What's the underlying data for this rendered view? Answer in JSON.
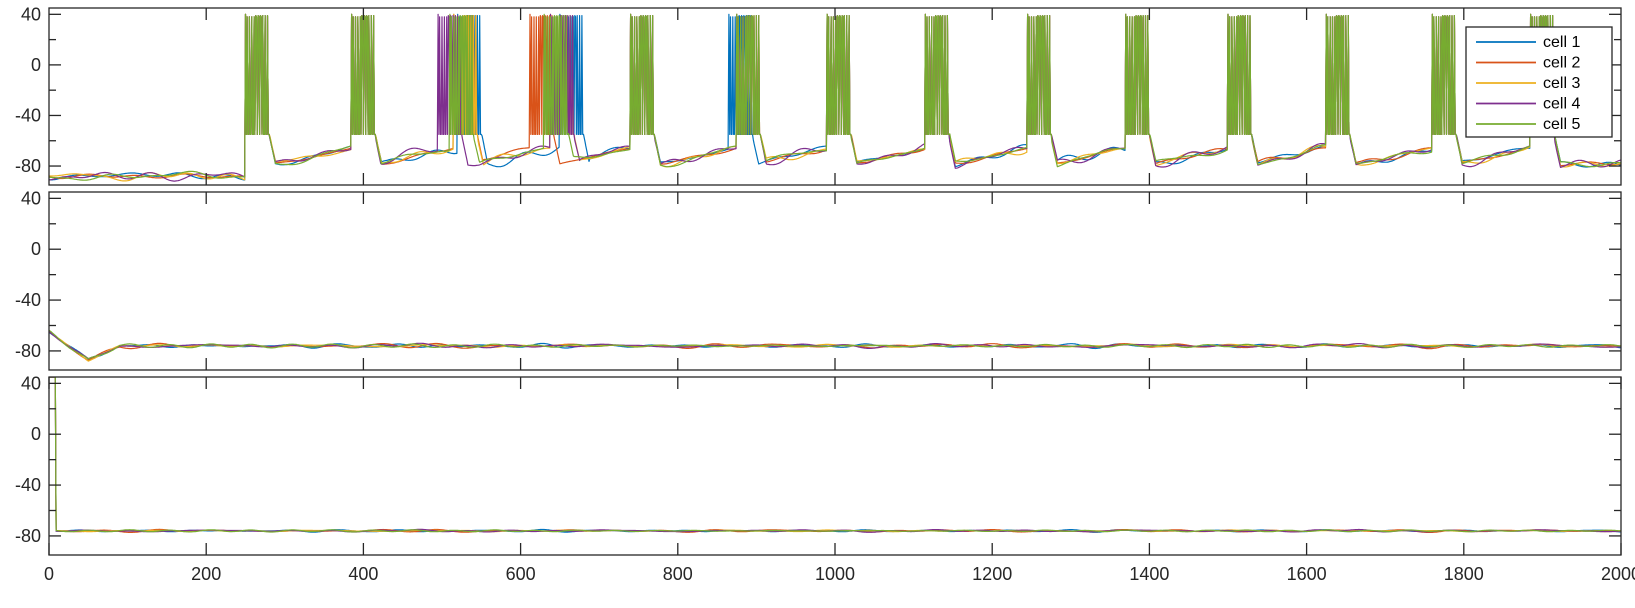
{
  "chart_data": [
    {
      "type": "line",
      "panel": "top",
      "title": "",
      "xlabel": "",
      "ylabel": "",
      "xlim": [
        0,
        2000
      ],
      "ylim": [
        -95,
        45
      ],
      "yticks": [
        40,
        0,
        -40,
        -80
      ],
      "ytick_labels": [
        "40",
        "0",
        "-40",
        "-80"
      ],
      "xticks": [
        200,
        400,
        600,
        800,
        1000,
        1200,
        1400,
        1600,
        1800
      ],
      "grid": false,
      "legend_position": "top-right",
      "baseline_mV": -76,
      "initial_rest_mV": -90,
      "initial_rest_until": 250,
      "burst_peak_mV": 40,
      "burst_trough_mV": -55,
      "burst_onsets": [
        250,
        385,
        500,
        620,
        740,
        870,
        990,
        1115,
        1245,
        1370,
        1500,
        1625,
        1760,
        1885
      ],
      "burst_duration": 30,
      "series": [
        {
          "name": "cell 1",
          "color": "#0072BD",
          "onset_offsets": [
            0,
            0,
            20,
            30,
            0,
            -5,
            0,
            0,
            0,
            0,
            0,
            0,
            0,
            0
          ]
        },
        {
          "name": "cell 2",
          "color": "#D95319",
          "onset_offsets": [
            0,
            0,
            15,
            -8,
            0,
            5,
            0,
            0,
            0,
            0,
            0,
            0,
            0,
            0
          ]
        },
        {
          "name": "cell 3",
          "color": "#EDB120",
          "onset_offsets": [
            0,
            0,
            15,
            18,
            0,
            5,
            0,
            0,
            0,
            0,
            0,
            0,
            0,
            0
          ]
        },
        {
          "name": "cell 4",
          "color": "#7E2F8E",
          "onset_offsets": [
            0,
            0,
            -5,
            18,
            0,
            5,
            0,
            0,
            0,
            0,
            0,
            0,
            0,
            0
          ]
        },
        {
          "name": "cell 5",
          "color": "#77AC30",
          "onset_offsets": [
            0,
            0,
            10,
            10,
            0,
            5,
            0,
            0,
            0,
            0,
            0,
            0,
            0,
            0
          ]
        }
      ]
    },
    {
      "type": "line",
      "panel": "middle",
      "title": "",
      "xlabel": "",
      "ylabel": "",
      "xlim": [
        0,
        2000
      ],
      "ylim": [
        -95,
        45
      ],
      "yticks": [
        40,
        0,
        -40,
        -80
      ],
      "ytick_labels": [
        "40",
        "0",
        "-40",
        "-80"
      ],
      "xticks": [
        200,
        400,
        600,
        800,
        1000,
        1200,
        1400,
        1600,
        1800
      ],
      "grid": false,
      "start_mV": -65,
      "dip_mV": -87,
      "dip_time": 50,
      "steady_mV": -76,
      "series": [
        {
          "name": "cell 1",
          "color": "#0072BD"
        },
        {
          "name": "cell 2",
          "color": "#D95319"
        },
        {
          "name": "cell 3",
          "color": "#EDB120"
        },
        {
          "name": "cell 4",
          "color": "#7E2F8E"
        },
        {
          "name": "cell 5",
          "color": "#77AC30"
        }
      ]
    },
    {
      "type": "line",
      "panel": "bottom",
      "title": "",
      "xlabel": "",
      "ylabel": "",
      "xlim": [
        0,
        2000
      ],
      "ylim": [
        -95,
        45
      ],
      "yticks": [
        40,
        0,
        -40,
        -80
      ],
      "ytick_labels": [
        "40",
        "0",
        "-40",
        "-80"
      ],
      "xticks": [
        0,
        200,
        400,
        600,
        800,
        1000,
        1200,
        1400,
        1600,
        1800,
        2000
      ],
      "xtick_labels": [
        "0",
        "200",
        "400",
        "600",
        "800",
        "1000",
        "1200",
        "1400",
        "1600",
        "1800",
        "2000"
      ],
      "grid": false,
      "initial_spike_mV": 45,
      "initial_spike_until": 8,
      "steady_mV": -76,
      "series": [
        {
          "name": "cell 1",
          "color": "#0072BD"
        },
        {
          "name": "cell 2",
          "color": "#D95319"
        },
        {
          "name": "cell 3",
          "color": "#EDB120"
        },
        {
          "name": "cell 4",
          "color": "#7E2F8E"
        },
        {
          "name": "cell 5",
          "color": "#77AC30"
        }
      ]
    }
  ]
}
